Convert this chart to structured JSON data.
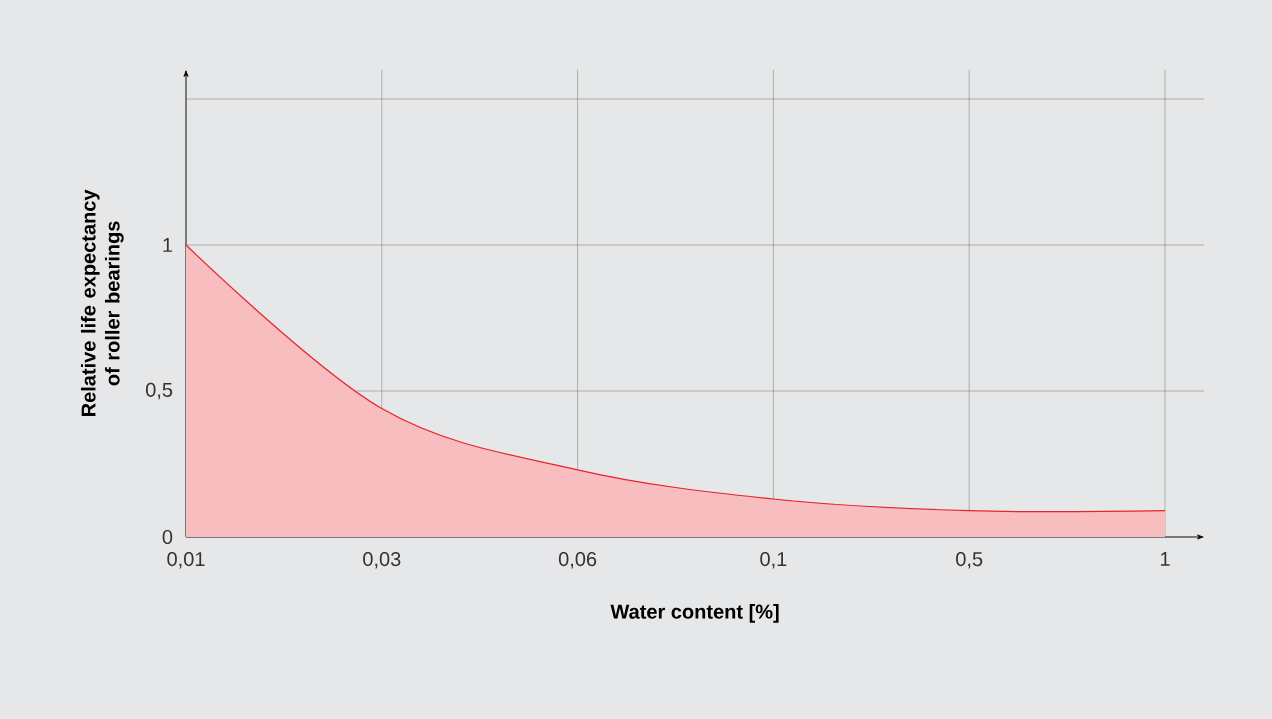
{
  "chart_data": {
    "type": "area",
    "xlabel": "Water content [%]",
    "ylabel": "Relative life expectancy of roller bearings",
    "categories": [
      "0,01",
      "0,03",
      "0,06",
      "0,1",
      "0,5",
      "1"
    ],
    "series": [
      {
        "color": "#e8232a",
        "values": [
          1,
          0.44,
          0.23,
          0.13,
          0.09,
          0.09
        ]
      }
    ],
    "ylim": [
      0,
      1.6
    ],
    "yticks": [
      0,
      {
        "value": 0.5,
        "label": "0,5"
      },
      1,
      {
        "value": 1.5,
        "label": null
      }
    ],
    "grid": true
  }
}
